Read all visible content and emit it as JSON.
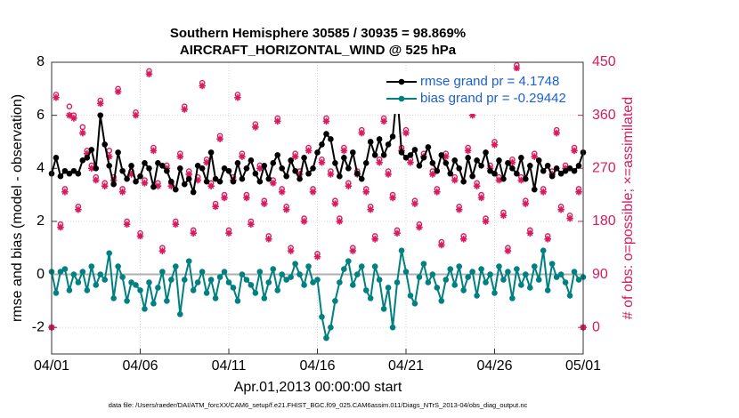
{
  "chart_data": {
    "type": "line",
    "title": "Southern Hemisphere 30585 / 30935 = 98.869%",
    "subtitle": "AIRCRAFT_HORIZONTAL_WIND @ 525 hPa",
    "x_label": "Apr.01,2013 00:00:00 start",
    "y_label": "rmse and bias (model - observation)",
    "y2_label": "# of obs: o=possible; ×=assimilated",
    "footnote": "data file: /Users/raeder/DAI/ATM_forcXX/CAM6_setup/f.e21.FHIST_BGC.f09_025.CAM6assim.011/Diags_NTrS_2013-04/obs_diag_output.nc",
    "xlim": [
      0,
      30
    ],
    "xticks": [
      {
        "value": 0,
        "label": "04/01"
      },
      {
        "value": 5,
        "label": "04/06"
      },
      {
        "value": 10,
        "label": "04/11"
      },
      {
        "value": 15,
        "label": "04/16"
      },
      {
        "value": 20,
        "label": "04/21"
      },
      {
        "value": 25,
        "label": "04/26"
      },
      {
        "value": 30,
        "label": "05/01"
      }
    ],
    "ylim": [
      -3,
      8
    ],
    "yticks": [
      -2,
      0,
      2,
      4,
      6,
      8
    ],
    "y2lim": [
      -45,
      450
    ],
    "y2ticks": [
      0,
      90,
      180,
      270,
      360,
      450
    ],
    "grid": true,
    "legend": "upper right",
    "x": [
      0,
      0.25,
      0.5,
      0.75,
      1,
      1.25,
      1.5,
      1.75,
      2,
      2.25,
      2.5,
      2.75,
      3,
      3.25,
      3.5,
      3.75,
      4,
      4.25,
      4.5,
      4.75,
      5,
      5.25,
      5.5,
      5.75,
      6,
      6.25,
      6.5,
      6.75,
      7,
      7.25,
      7.5,
      7.75,
      8,
      8.25,
      8.5,
      8.75,
      9,
      9.25,
      9.5,
      9.75,
      10,
      10.25,
      10.5,
      10.75,
      11,
      11.25,
      11.5,
      11.75,
      12,
      12.25,
      12.5,
      12.75,
      13,
      13.25,
      13.5,
      13.75,
      14,
      14.25,
      14.5,
      14.75,
      15,
      15.25,
      15.5,
      15.75,
      16,
      16.25,
      16.5,
      16.75,
      17,
      17.25,
      17.5,
      17.75,
      18,
      18.25,
      18.5,
      18.75,
      19,
      19.25,
      19.5,
      19.75,
      20,
      20.25,
      20.5,
      20.75,
      21,
      21.25,
      21.5,
      21.75,
      22,
      22.25,
      22.5,
      22.75,
      23,
      23.25,
      23.5,
      23.75,
      24,
      24.25,
      24.5,
      24.75,
      25,
      25.25,
      25.5,
      25.75,
      26,
      26.25,
      26.5,
      26.75,
      27,
      27.25,
      27.5,
      27.75,
      28,
      28.25,
      28.5,
      28.75,
      29,
      29.25,
      29.5,
      29.75,
      30
    ],
    "series": [
      {
        "name": "rmse grand pr = 4.1748",
        "color": "#000000",
        "marker": "dot",
        "values": [
          3.8,
          4.4,
          3.7,
          3.9,
          3.8,
          3.9,
          3.8,
          4.3,
          4.4,
          4.7,
          4.0,
          6.0,
          4.9,
          4.1,
          3.4,
          4.6,
          3.9,
          3.6,
          4.1,
          3.5,
          3.7,
          4.2,
          4.0,
          3.3,
          4.2,
          4.1,
          3.9,
          3.5,
          3.2,
          4.0,
          3.4,
          3.6,
          3.1,
          4.1,
          4.0,
          3.5,
          4.6,
          3.6,
          3.5,
          4.0,
          3.9,
          3.5,
          4.2,
          3.6,
          4.0,
          4.3,
          3.8,
          3.5,
          4.1,
          3.6,
          4.2,
          4.5,
          4.0,
          3.7,
          4.3,
          3.9,
          3.6,
          4.4,
          3.8,
          4.0,
          4.6,
          4.9,
          5.3,
          5.1,
          4.2,
          3.7,
          4.4,
          4.0,
          4.6,
          3.8,
          3.6,
          4.2,
          5.0,
          4.5,
          5.1,
          4.5,
          4.9,
          5.2,
          6.9,
          4.6,
          4.4,
          4.5,
          4.7,
          4.1,
          4.4,
          4.8,
          4.2,
          3.9,
          4.5,
          4.2,
          3.8,
          4.3,
          4.0,
          3.5,
          4.4,
          3.7,
          4.3,
          4.1,
          4.6,
          3.9,
          3.8,
          4.3,
          3.6,
          4.2,
          4.0,
          3.8,
          4.4,
          3.6,
          4.1,
          3.2,
          4.3,
          3.9,
          4.1,
          3.7,
          4.0,
          3.8,
          3.9,
          4.0,
          3.9,
          4.1,
          4.6
        ]
      },
      {
        "name": "bias grand pr = -0.29442",
        "color": "#008080",
        "marker": "dot",
        "values": [
          0.1,
          -0.7,
          0.1,
          0.2,
          -0.6,
          0.0,
          -0.3,
          0.1,
          -0.6,
          0.3,
          -0.4,
          0.0,
          -0.2,
          0.8,
          -0.9,
          0.3,
          -0.1,
          -1.0,
          -0.3,
          -0.4,
          -0.6,
          -1.3,
          -0.3,
          -1.1,
          -0.5,
          0.1,
          -1.0,
          -0.2,
          0.3,
          -1.5,
          -0.2,
          0.5,
          -0.6,
          -0.3,
          0.1,
          -0.7,
          -0.2,
          -0.9,
          -0.1,
          0.1,
          -0.3,
          -0.5,
          -1.0,
          0.0,
          -0.2,
          -0.4,
          -0.7,
          0.1,
          -0.9,
          -0.3,
          0.2,
          -0.6,
          0.0,
          -0.2,
          -0.1,
          0.4,
          0.0,
          -0.4,
          0.3,
          -0.3,
          -0.2,
          -1.6,
          -2.4,
          -2.0,
          -1.0,
          -0.3,
          0.2,
          0.5,
          -0.4,
          0.0,
          0.3,
          -0.6,
          -0.9,
          0.3,
          -0.2,
          -1.3,
          -0.5,
          -2.0,
          -0.3,
          0.9,
          0.1,
          -0.8,
          -1.1,
          -0.1,
          0.4,
          -0.3,
          0.0,
          -0.5,
          -1.0,
          -0.2,
          0.2,
          -0.4,
          0.3,
          -0.6,
          -0.1,
          0.1,
          -0.8,
          0.2,
          -0.3,
          0.0,
          -0.7,
          0.3,
          -0.2,
          0.1,
          -0.9,
          0.2,
          -0.4,
          0.0,
          -0.5,
          0.3,
          -0.2,
          0.9,
          -0.6,
          0.4,
          -0.1,
          0.0,
          -0.3,
          -0.8,
          0.1,
          -0.2,
          -0.1
        ]
      },
      {
        "color": "#d81b60",
        "marker": "circle",
        "axis": "y2",
        "values": [
          0,
          395,
          175,
          235,
          375,
          360,
          205,
          340,
          300,
          275,
          255,
          385,
          245,
          300,
          255,
          405,
          235,
          180,
          265,
          365,
          160,
          250,
          435,
          305,
          245,
          135,
          275,
          245,
          180,
          295,
          375,
          265,
          165,
          255,
          415,
          285,
          245,
          210,
          325,
          225,
          165,
          255,
          395,
          295,
          225,
          180,
          345,
          275,
          215,
          155,
          250,
          355,
          235,
          205,
          135,
          295,
          265,
          185,
          305,
          235,
          125,
          285,
          355,
          265,
          215,
          185,
          305,
          245,
          135,
          265,
          335,
          235,
          205,
          155,
          285,
          355,
          265,
          225,
          165,
          305,
          335,
          285,
          215,
          175,
          295,
          385,
          265,
          235,
          145,
          295,
          375,
          255,
          205,
          155,
          305,
          365,
          245,
          225,
          185,
          275,
          315,
          255,
          195,
          135,
          285,
          445,
          255,
          215,
          165,
          295,
          405,
          235,
          155,
          265,
          335,
          205,
          275,
          190,
          305,
          235,
          0
        ]
      },
      {
        "color": "#d81b60",
        "marker": "asterisk",
        "axis": "y2",
        "values": [
          0,
          390,
          170,
          230,
          360,
          355,
          200,
          330,
          295,
          270,
          250,
          380,
          240,
          290,
          250,
          400,
          230,
          175,
          260,
          360,
          155,
          245,
          430,
          300,
          240,
          130,
          270,
          240,
          175,
          290,
          370,
          260,
          160,
          250,
          410,
          280,
          240,
          205,
          320,
          220,
          160,
          250,
          390,
          290,
          220,
          175,
          340,
          270,
          210,
          150,
          245,
          350,
          230,
          200,
          130,
          290,
          260,
          180,
          300,
          230,
          120,
          280,
          350,
          260,
          210,
          180,
          300,
          240,
          130,
          260,
          330,
          230,
          200,
          150,
          280,
          350,
          260,
          220,
          160,
          300,
          330,
          280,
          210,
          170,
          290,
          380,
          260,
          230,
          140,
          290,
          370,
          250,
          200,
          150,
          300,
          360,
          240,
          220,
          180,
          270,
          310,
          250,
          190,
          130,
          280,
          440,
          250,
          210,
          160,
          290,
          400,
          230,
          150,
          260,
          330,
          200,
          270,
          185,
          300,
          230,
          0
        ]
      }
    ]
  }
}
